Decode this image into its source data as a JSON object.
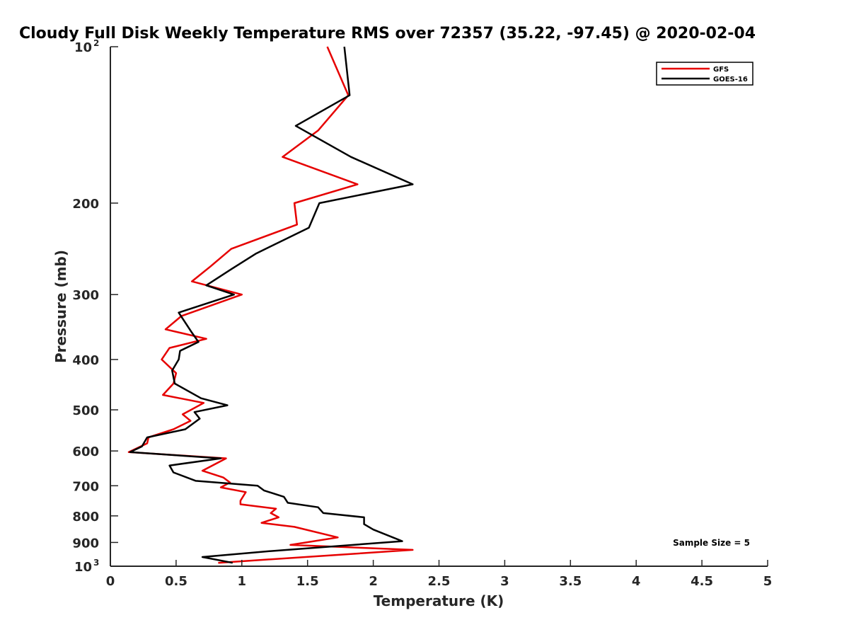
{
  "chart_data": {
    "type": "line",
    "title": "Cloudy Full Disk Weekly Temperature RMS over 72357 (35.22, -97.45) @ 2020-02-04",
    "xlabel": "Temperature (K)",
    "ylabel": "Pressure (mb)",
    "xlim": [
      0,
      5
    ],
    "ylim": [
      100,
      1000
    ],
    "yscale": "log",
    "y_reversed": true,
    "grid": false,
    "legend_position": "top-right",
    "x_ticks": [
      "0",
      "0.5",
      "1",
      "1.5",
      "2",
      "2.5",
      "3",
      "3.5",
      "4",
      "4.5",
      "5"
    ],
    "y_ticks": [
      {
        "value": 100,
        "label": "10",
        "sup": "2"
      },
      {
        "value": 200,
        "label": "200",
        "sup": ""
      },
      {
        "value": 300,
        "label": "300",
        "sup": ""
      },
      {
        "value": 400,
        "label": "400",
        "sup": ""
      },
      {
        "value": 500,
        "label": "500",
        "sup": ""
      },
      {
        "value": 600,
        "label": "600",
        "sup": ""
      },
      {
        "value": 700,
        "label": "700",
        "sup": ""
      },
      {
        "value": 800,
        "label": "800",
        "sup": ""
      },
      {
        "value": 900,
        "label": "900",
        "sup": ""
      },
      {
        "value": 1000,
        "label": "10",
        "sup": "3"
      }
    ],
    "annotation": "Sample Size = 5",
    "series": [
      {
        "name": "GFS",
        "color": "#e60000",
        "points": [
          [
            1.65,
            100
          ],
          [
            1.81,
            124
          ],
          [
            1.58,
            145
          ],
          [
            1.31,
            163
          ],
          [
            1.88,
            184
          ],
          [
            1.4,
            200
          ],
          [
            1.42,
            220
          ],
          [
            0.92,
            245
          ],
          [
            0.76,
            265
          ],
          [
            0.62,
            283
          ],
          [
            1.0,
            300
          ],
          [
            0.54,
            330
          ],
          [
            0.42,
            350
          ],
          [
            0.73,
            365
          ],
          [
            0.45,
            380
          ],
          [
            0.39,
            400
          ],
          [
            0.5,
            425
          ],
          [
            0.48,
            445
          ],
          [
            0.4,
            468
          ],
          [
            0.71,
            485
          ],
          [
            0.55,
            510
          ],
          [
            0.61,
            525
          ],
          [
            0.48,
            545
          ],
          [
            0.29,
            565
          ],
          [
            0.28,
            580
          ],
          [
            0.14,
            603
          ],
          [
            0.88,
            620
          ],
          [
            0.7,
            655
          ],
          [
            0.86,
            675
          ],
          [
            0.91,
            690
          ],
          [
            0.84,
            705
          ],
          [
            1.03,
            720
          ],
          [
            0.99,
            748
          ],
          [
            0.99,
            760
          ],
          [
            1.26,
            775
          ],
          [
            1.22,
            790
          ],
          [
            1.28,
            805
          ],
          [
            1.15,
            825
          ],
          [
            1.4,
            840
          ],
          [
            1.73,
            880
          ],
          [
            1.37,
            910
          ],
          [
            2.3,
            930
          ],
          [
            0.82,
            985
          ]
        ]
      },
      {
        "name": "GOES-16",
        "color": "#000000",
        "points": [
          [
            1.78,
            100
          ],
          [
            1.82,
            124
          ],
          [
            1.41,
            142
          ],
          [
            1.83,
            163
          ],
          [
            2.3,
            184
          ],
          [
            1.59,
            200
          ],
          [
            1.51,
            223
          ],
          [
            1.11,
            250
          ],
          [
            0.92,
            268
          ],
          [
            0.73,
            288
          ],
          [
            0.94,
            300
          ],
          [
            0.52,
            325
          ],
          [
            0.62,
            355
          ],
          [
            0.67,
            370
          ],
          [
            0.53,
            385
          ],
          [
            0.52,
            400
          ],
          [
            0.47,
            420
          ],
          [
            0.49,
            445
          ],
          [
            0.69,
            475
          ],
          [
            0.89,
            490
          ],
          [
            0.64,
            505
          ],
          [
            0.68,
            520
          ],
          [
            0.57,
            545
          ],
          [
            0.28,
            565
          ],
          [
            0.24,
            588
          ],
          [
            0.15,
            603
          ],
          [
            0.84,
            620
          ],
          [
            0.45,
            640
          ],
          [
            0.48,
            660
          ],
          [
            0.65,
            685
          ],
          [
            1.12,
            700
          ],
          [
            1.17,
            715
          ],
          [
            1.32,
            735
          ],
          [
            1.35,
            755
          ],
          [
            1.58,
            770
          ],
          [
            1.62,
            790
          ],
          [
            1.93,
            805
          ],
          [
            1.93,
            830
          ],
          [
            2.0,
            850
          ],
          [
            2.22,
            895
          ],
          [
            1.22,
            935
          ],
          [
            0.7,
            960
          ],
          [
            0.93,
            985
          ]
        ]
      }
    ]
  }
}
